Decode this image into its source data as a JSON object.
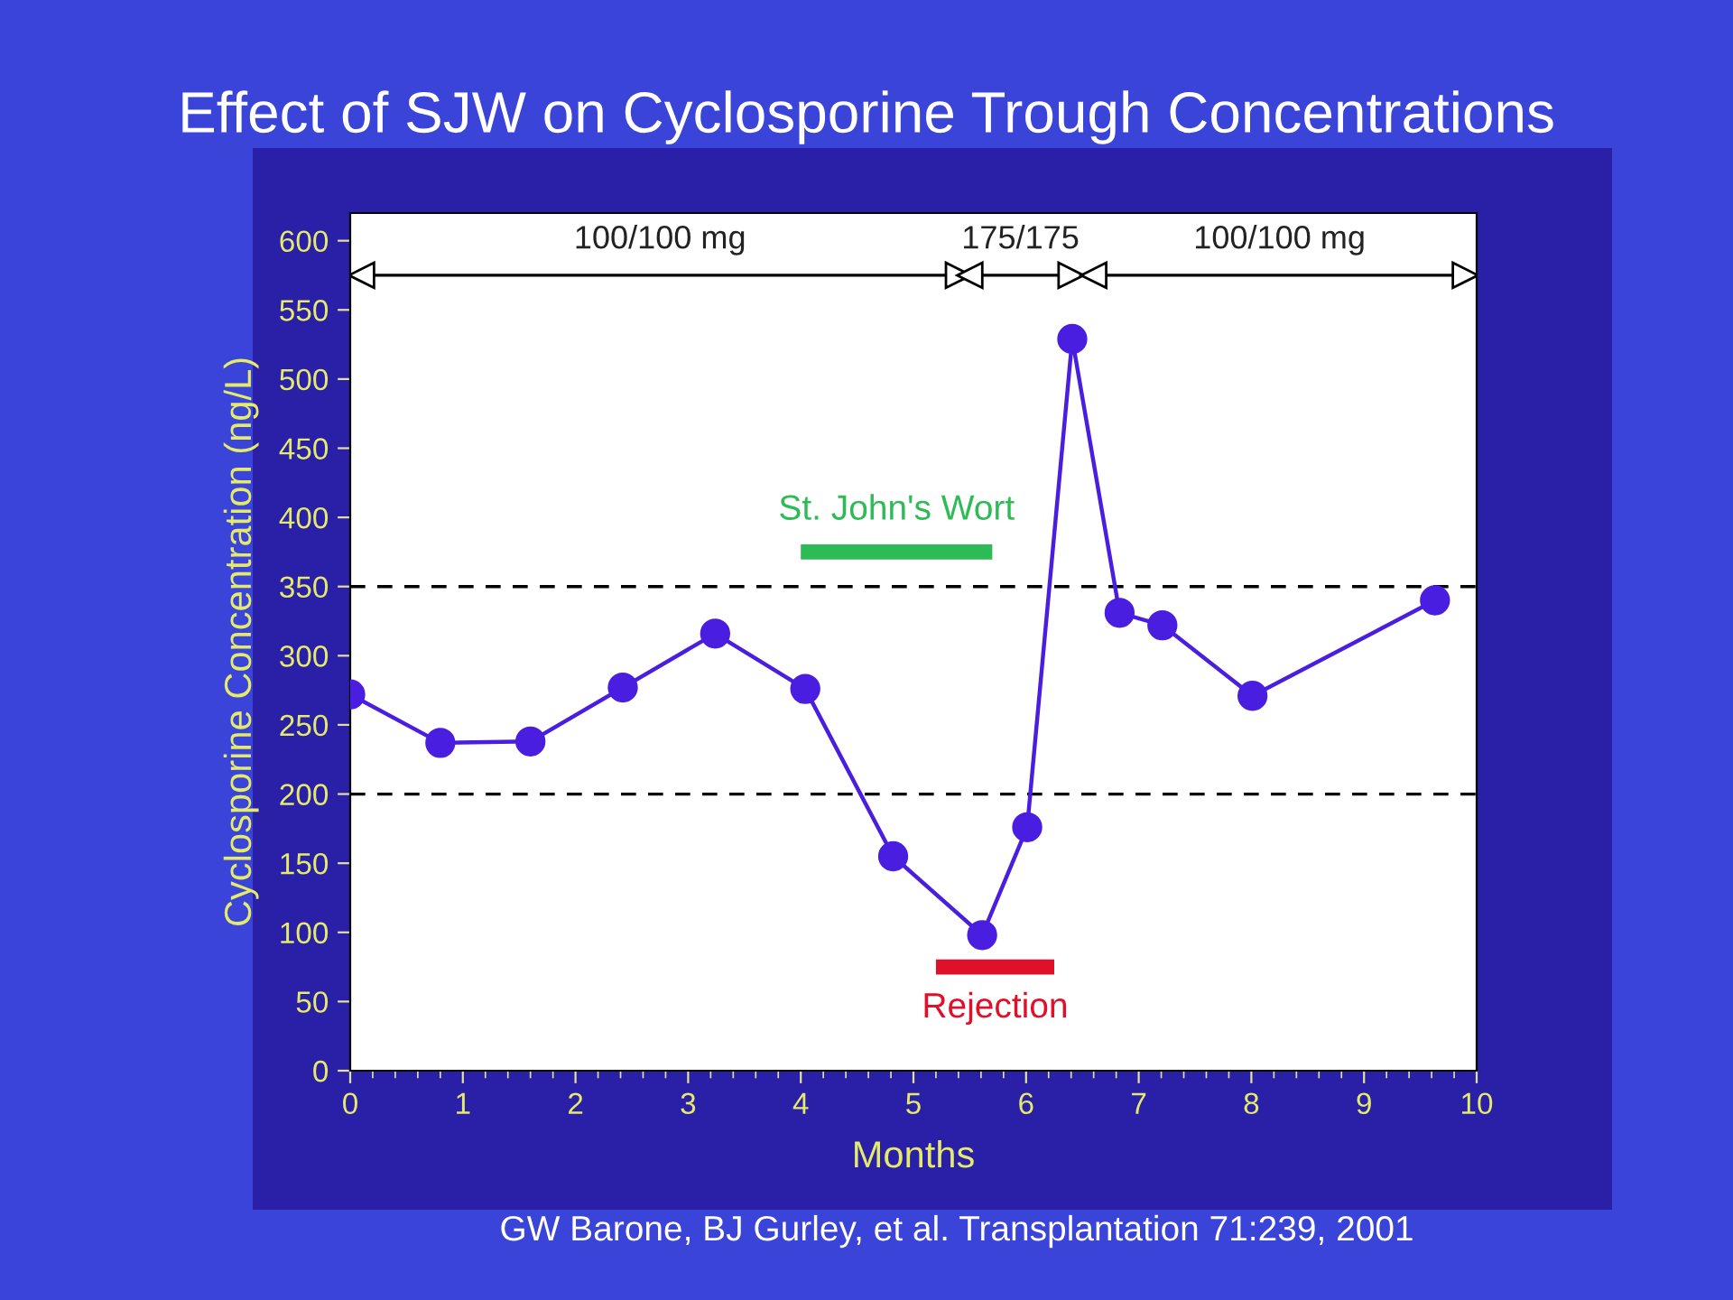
{
  "chart_data": {
    "type": "line",
    "title": "Effect of SJW on Cyclosporine Trough Concentrations",
    "xlabel": "Months",
    "ylabel": "Cyclosporine Concentration (ng/L)",
    "series": [
      {
        "color": "#4a1ee0",
        "x": [
          0,
          0.8,
          1.6,
          2.42,
          3.24,
          4.04,
          4.82,
          5.61,
          6.01,
          6.41,
          6.83,
          7.21,
          8.01,
          9.63
        ],
        "values": [
          272,
          237,
          238,
          277,
          316,
          276,
          155,
          98,
          176,
          529,
          331,
          322,
          271,
          340
        ]
      },
      {
        "name": "100/100 mg",
        "color": "#000000",
        "marker": "triangle",
        "x": [
          0.1,
          5.4
        ],
        "values": [
          575,
          575
        ]
      },
      {
        "name": "175/175",
        "color": "#000000",
        "marker": "triangle",
        "x": [
          5.5,
          6.4
        ],
        "values": [
          575,
          575
        ]
      },
      {
        "name": "100/100 mg",
        "color": "#000000",
        "marker": "triangle",
        "x": [
          6.6,
          9.9
        ],
        "values": [
          575,
          575
        ]
      },
      {
        "name": "St. John's Wort",
        "color": "#2dbb55",
        "marker": "none",
        "x": [
          4.0,
          5.7
        ],
        "values": [
          375,
          375
        ]
      },
      {
        "name": "Rejection",
        "color": "#e0102a",
        "marker": "none",
        "x": [
          5.2,
          6.25
        ],
        "values": [
          75,
          75
        ]
      }
    ],
    "marker": "circle",
    "line_style": "solid",
    "xlim": [
      0,
      10
    ],
    "xticks": [
      0,
      1,
      2,
      3,
      4,
      5,
      6,
      7,
      8,
      9,
      10
    ],
    "ylim": [
      0,
      620
    ],
    "yticks": [
      0,
      50,
      100,
      150,
      200,
      250,
      300,
      350,
      400,
      450,
      500,
      550,
      600
    ],
    "ref_lines": [
      {
        "axis": "y",
        "value": 200,
        "color": "#000000",
        "line_style": "dashed"
      },
      {
        "axis": "y",
        "value": 350,
        "color": "#000000",
        "line_style": "dashed"
      }
    ],
    "annotations": [
      "GW Barone, BJ Gurley, et al. Transplantation 71:239, 2001"
    ]
  }
}
